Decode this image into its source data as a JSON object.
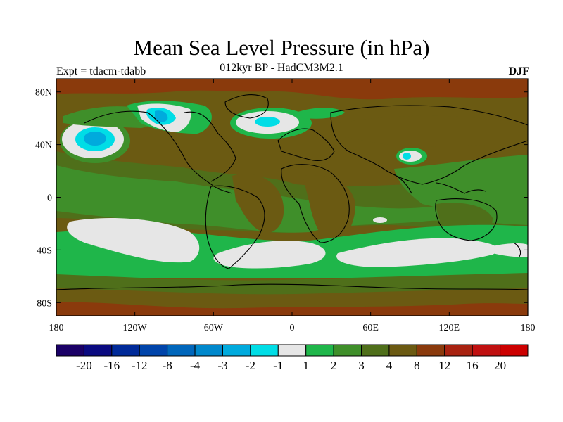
{
  "title": "Mean Sea Level Pressure (in hPa)",
  "subtitle": "012kyr BP - HadCM3M2.1",
  "experiment": "Expt = tdacm-tdabb",
  "season": "DJF",
  "axes": {
    "x_ticks": [
      {
        "lon": -180,
        "label": "180"
      },
      {
        "lon": -120,
        "label": "120W"
      },
      {
        "lon": -60,
        "label": "60W"
      },
      {
        "lon": 0,
        "label": "0"
      },
      {
        "lon": 60,
        "label": "60E"
      },
      {
        "lon": 120,
        "label": "120E"
      },
      {
        "lon": 180,
        "label": "180"
      }
    ],
    "y_ticks": [
      {
        "lat": 80,
        "label": "80N"
      },
      {
        "lat": 40,
        "label": "40N"
      },
      {
        "lat": 0,
        "label": "0"
      },
      {
        "lat": -40,
        "label": "40S"
      },
      {
        "lat": -80,
        "label": "80S"
      }
    ],
    "lon_range": [
      -180,
      180
    ],
    "lat_range": [
      -90,
      90
    ]
  },
  "colorbar": {
    "colors": [
      "#1a0066",
      "#0a0a80",
      "#002a99",
      "#0044aa",
      "#0066bb",
      "#0088cc",
      "#00aadd",
      "#00dde6",
      "#e6e6e6",
      "#1fb64a",
      "#3f8f2a",
      "#4f6f1a",
      "#6b5a12",
      "#8a3a0c",
      "#a82210",
      "#c01010",
      "#cc0000"
    ],
    "labels": [
      "-20",
      "-16",
      "-12",
      "-8",
      "-4",
      "-3",
      "-2",
      "-1",
      "1",
      "2",
      "3",
      "4",
      "8",
      "12",
      "16",
      "20"
    ]
  },
  "map_colors": {
    "brown": "#6b5a12",
    "darkbrown": "#8a3a0c",
    "olive": "#4f6f1a",
    "green": "#3f8f2a",
    "brightgreen": "#1fb64a",
    "white": "#e6e6e6",
    "cyan": "#00dde6",
    "blue": "#00aadd"
  }
}
